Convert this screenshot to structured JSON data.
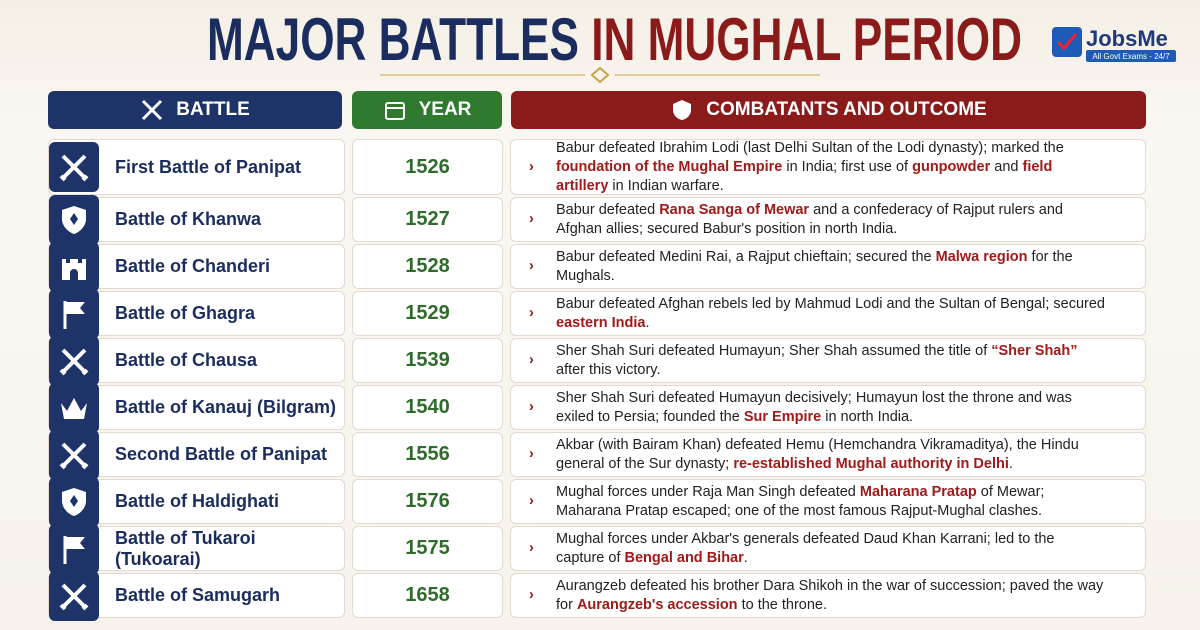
{
  "header": {
    "title": [
      {
        "text": "MAJOR BATTLES",
        "highlight": false
      },
      {
        "text": "IN MUGHAL PERIOD",
        "highlight": true
      }
    ],
    "logo": {
      "name": "JobsMe",
      "tagline": "All Govt Exams - 24/7"
    }
  },
  "table": {
    "columns": [
      "BATTLE",
      "YEAR",
      "COMBATANTS AND OUTCOME"
    ],
    "rows": [
      {
        "battle": "First Battle of Panipat",
        "year": 1526,
        "outcome": [
          {
            "text": "Babur defeated Ibrahim Lodi (last Delhi Sultan of the Lodi dynasty); marked the ",
            "highlight": false
          },
          {
            "text": "foundation of the Mughal Empire",
            "highlight": true
          },
          {
            "text": " in India; first use of ",
            "highlight": false
          },
          {
            "text": "gunpowder",
            "highlight": true
          },
          {
            "text": " and ",
            "highlight": false
          },
          {
            "text": "field artillery",
            "highlight": true
          },
          {
            "text": " in Indian warfare.",
            "highlight": false
          }
        ]
      },
      {
        "battle": "Battle of Khanwa",
        "year": 1527,
        "outcome": [
          {
            "text": "Babur defeated ",
            "highlight": false
          },
          {
            "text": "Rana Sanga of Mewar",
            "highlight": true
          },
          {
            "text": " and a confederacy of Rajput rulers and Afghan allies; secured Babur's position in north India.",
            "highlight": false
          }
        ]
      },
      {
        "battle": "Battle of Chanderi",
        "year": 1528,
        "outcome": [
          {
            "text": "Babur defeated Medini Rai, a Rajput chieftain; secured the ",
            "highlight": false
          },
          {
            "text": "Malwa region",
            "highlight": true
          },
          {
            "text": " for the Mughals.",
            "highlight": false
          }
        ]
      },
      {
        "battle": "Battle of Ghagra",
        "year": 1529,
        "outcome": [
          {
            "text": "Babur defeated Afghan rebels led by Mahmud Lodi and the Sultan of Bengal; secured ",
            "highlight": false
          },
          {
            "text": "eastern India",
            "highlight": true
          },
          {
            "text": ".",
            "highlight": false
          }
        ]
      },
      {
        "battle": "Battle of Chausa",
        "year": 1539,
        "outcome": [
          {
            "text": "Sher Shah Suri defeated Humayun; Sher Shah assumed the title of ",
            "highlight": false
          },
          {
            "text": "“Sher Shah”",
            "highlight": true
          },
          {
            "text": " after this victory.",
            "highlight": false
          }
        ]
      },
      {
        "battle": "Battle of Kanauj (Bilgram)",
        "year": 1540,
        "outcome": [
          {
            "text": "Sher Shah Suri defeated Humayun decisively; Humayun lost the throne and was exiled to Persia; founded the ",
            "highlight": false
          },
          {
            "text": "Sur Empire",
            "highlight": true
          },
          {
            "text": " in north India.",
            "highlight": false
          }
        ]
      },
      {
        "battle": "Second Battle of Panipat",
        "year": 1556,
        "outcome": [
          {
            "text": "Akbar (with Bairam Khan) defeated Hemu (Hemchandra Vikramaditya), the Hindu general of the Sur dynasty; ",
            "highlight": false
          },
          {
            "text": "re-established Mughal authority in Delhi",
            "highlight": true
          },
          {
            "text": ".",
            "highlight": false
          }
        ]
      },
      {
        "battle": "Battle of Haldighati",
        "year": 1576,
        "outcome": [
          {
            "text": "Mughal forces under Raja Man Singh defeated ",
            "highlight": false
          },
          {
            "text": "Maharana Pratap",
            "highlight": true
          },
          {
            "text": " of Mewar; Maharana Pratap escaped; one of the most famous Rajput-Mughal clashes.",
            "highlight": false
          }
        ]
      },
      {
        "battle": "Battle of Tukaroi (Tukoarai)",
        "year": 1575,
        "outcome": [
          {
            "text": "Mughal forces under Akbar's generals defeated Daud Khan Karrani; led to the capture of ",
            "highlight": false
          },
          {
            "text": "Bengal and Bihar",
            "highlight": true
          },
          {
            "text": ".",
            "highlight": false
          }
        ]
      },
      {
        "battle": "Battle of Samugarh",
        "year": 1658,
        "outcome": [
          {
            "text": "Aurangzeb defeated his brother Dara Shikoh in the war of succession; paved the way for ",
            "highlight": false
          },
          {
            "text": "Aurangzeb's accession",
            "highlight": true
          },
          {
            "text": " to the throne.",
            "highlight": false
          }
        ]
      }
    ]
  }
}
